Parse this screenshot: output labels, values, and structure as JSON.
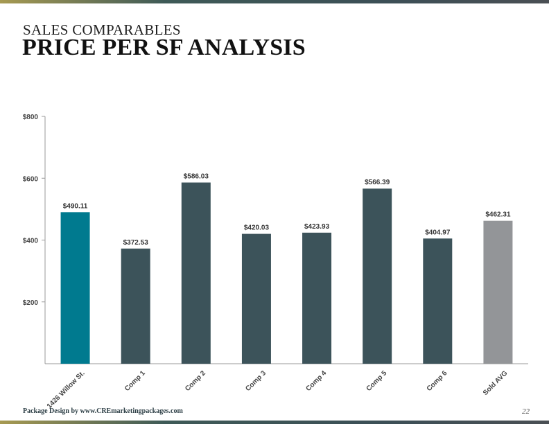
{
  "header": {
    "subtitle": "SALES COMPARABLES",
    "title": "PRICE PER SF ANALYSIS"
  },
  "footer": {
    "credit": "Package Design by www.CREmarketingpackages.com",
    "page_number": "22"
  },
  "colors": {
    "subject": "#007a8f",
    "comp": "#3c535a",
    "average": "#939598",
    "axis": "#999999"
  },
  "chart_data": {
    "type": "bar",
    "title": "",
    "xlabel": "",
    "ylabel": "",
    "ylim": [
      0,
      800
    ],
    "yticks": [
      200,
      400,
      600,
      800
    ],
    "ytick_labels": [
      "$200",
      "$400",
      "$600",
      "$800"
    ],
    "grid": false,
    "categories": [
      "1426 Willow St.",
      "Comp 1",
      "Comp 2",
      "Comp 3",
      "Comp 4",
      "Comp 5",
      "Comp 6",
      "Sold AVG"
    ],
    "values": [
      490.11,
      372.53,
      586.03,
      420.03,
      423.93,
      566.39,
      404.97,
      462.31
    ],
    "value_labels": [
      "$490.11",
      "$372.53",
      "$586.03",
      "$420.03",
      "$423.93",
      "$566.39",
      "$404.97",
      "$462.31"
    ],
    "bar_colors": [
      "subject",
      "comp",
      "comp",
      "comp",
      "comp",
      "comp",
      "comp",
      "average"
    ]
  }
}
